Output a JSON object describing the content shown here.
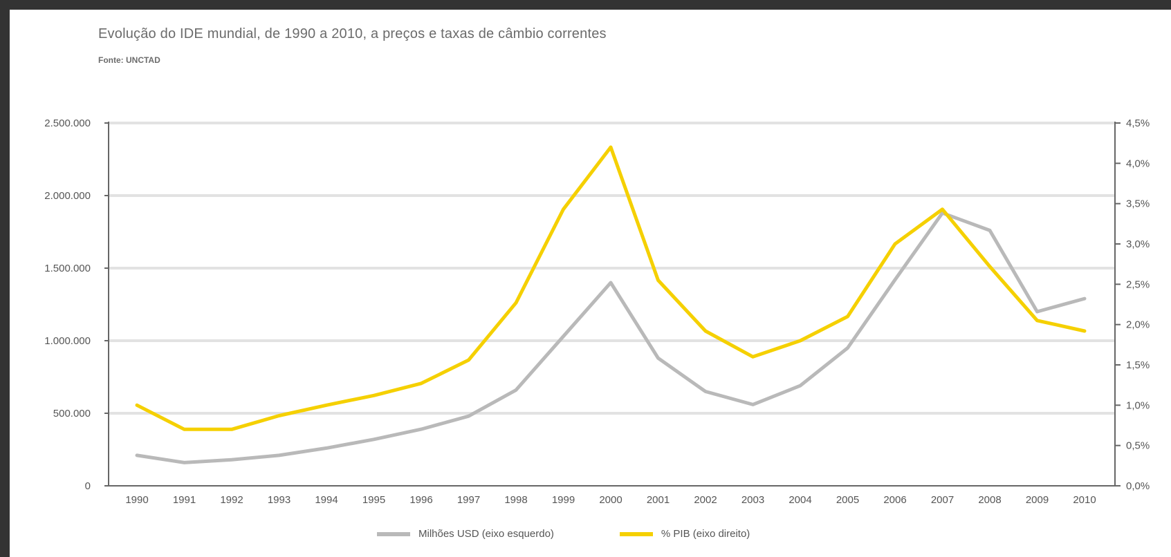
{
  "title": "Evolução do IDE mundial, de 1990 a 2010, a preços e taxas de câmbio correntes",
  "subtitle": "Fonte: UNCTAD",
  "chart_data": {
    "type": "line",
    "title": "Evolução do IDE mundial, de 1990 a 2010, a preços e taxas de câmbio correntes",
    "subtitle": "Fonte: UNCTAD",
    "categories": [
      "1990",
      "1991",
      "1992",
      "1993",
      "1994",
      "1995",
      "1996",
      "1997",
      "1998",
      "1999",
      "2000",
      "2001",
      "2002",
      "2003",
      "2004",
      "2005",
      "2006",
      "2007",
      "2008",
      "2009",
      "2010"
    ],
    "left_axis": {
      "ylim": [
        0,
        2500000
      ],
      "ticks": [
        0,
        500000,
        1000000,
        1500000,
        2000000,
        2500000
      ],
      "tick_labels": [
        "0",
        "500.000",
        "1.000.000",
        "1.500.000",
        "2.000.000",
        "2.500.000"
      ]
    },
    "right_axis": {
      "ylim": [
        0,
        4.5
      ],
      "ticks": [
        0,
        0.5,
        1.0,
        1.5,
        2.0,
        2.5,
        3.0,
        3.5,
        4.0,
        4.5
      ],
      "tick_labels": [
        "0,0%",
        "0,5%",
        "1,0%",
        "1,5%",
        "2,0%",
        "2,5%",
        "3,0%",
        "3,5%",
        "4,0%",
        "4,5%"
      ]
    },
    "series": [
      {
        "name": "Milhões USD (eixo esquerdo)",
        "axis": "left",
        "color": "#b9b9b9",
        "values": [
          210000,
          160000,
          180000,
          210000,
          260000,
          320000,
          390000,
          480000,
          660000,
          1030000,
          1400000,
          880000,
          650000,
          560000,
          690000,
          950000,
          1420000,
          1880000,
          1760000,
          1200000,
          1290000
        ]
      },
      {
        "name": "% PIB (eixo direito)",
        "axis": "right",
        "color": "#f5d000",
        "values": [
          1.0,
          0.7,
          0.7,
          0.87,
          1.0,
          1.12,
          1.27,
          1.56,
          2.27,
          3.43,
          4.2,
          2.55,
          1.92,
          1.6,
          1.8,
          2.1,
          3.0,
          3.43,
          2.72,
          2.05,
          1.92
        ]
      }
    ],
    "grid": true,
    "legend_placement": "bottom-center"
  }
}
